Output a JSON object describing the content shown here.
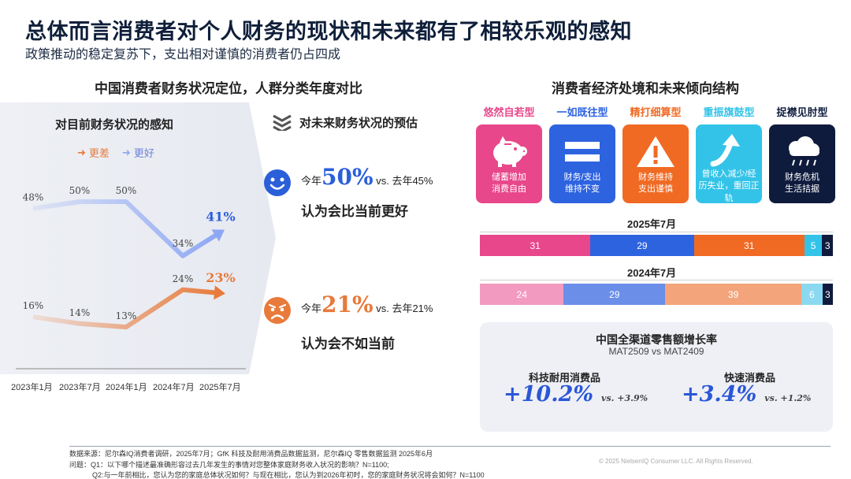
{
  "header": {
    "title": "总体而言消费者对个人财务的现状和未来都有了相较乐观的感知",
    "subtitle": "政策推动的稳定复苏下，支出相对谨慎的消费者仍占四成"
  },
  "left_section": {
    "heading": "中国消费者财务状况定位，人群分类年度对比",
    "panel_title": "对目前财务状况的感知",
    "legend": {
      "worse_label": "更差",
      "better_label": "更好"
    },
    "x_labels": [
      "2023年1月",
      "2023年7月",
      "2024年1月",
      "2024年7月",
      "2025年7月"
    ]
  },
  "chart_data": {
    "type": "line",
    "title": "对目前财务状况的感知",
    "x": [
      "2023年1月",
      "2023年7月",
      "2024年1月",
      "2024年7月",
      "2025年7月"
    ],
    "series": [
      {
        "name": "更好",
        "values": [
          48,
          50,
          50,
          34,
          41
        ],
        "labels": [
          "48%",
          "50%",
          "50%",
          "34%",
          "41%"
        ],
        "color": "#8ea7f5"
      },
      {
        "name": "更差",
        "values": [
          16,
          14,
          13,
          24,
          23
        ],
        "labels": [
          "16%",
          "14%",
          "13%",
          "24%",
          "23%"
        ],
        "color": "#e87a3b"
      }
    ],
    "legend_position": "top"
  },
  "forecast": {
    "heading": "对未来财务状况的预估",
    "better": {
      "prefix": "今年",
      "pct": "50%",
      "vs": "vs. 去年45%",
      "caption": "认为会比当前更好",
      "color": "#2b5fd9"
    },
    "worse": {
      "prefix": "今年",
      "pct": "21%",
      "vs": "vs. 去年21%",
      "caption": "认为会不如当前",
      "color": "#e87a3b"
    }
  },
  "right_section": {
    "heading": "消费者经济处境和未来倾向结构",
    "types": [
      {
        "name": "悠然自若型",
        "desc1": "储蓄增加",
        "desc2": "消费自由",
        "color": "#e8478b",
        "icon": "piggy-bank-icon"
      },
      {
        "name": "一如既往型",
        "desc1": "财务/支出",
        "desc2": "维持不变",
        "color": "#2e63e0",
        "icon": "equals-icon"
      },
      {
        "name": "精打细算型",
        "desc1": "财务维持",
        "desc2": "支出谨慎",
        "color": "#f06a23",
        "icon": "warning-icon"
      },
      {
        "name": "重振旗鼓型",
        "desc1": "曾收入减少/经",
        "desc2": "历失业，重回正轨",
        "color": "#33c3e8",
        "icon": "rebound-arrow-icon"
      },
      {
        "name": "捉襟见肘型",
        "desc1": "财务危机",
        "desc2": "生活拮据",
        "color": "#0f1b3d",
        "icon": "storm-cloud-icon"
      }
    ],
    "bars": [
      {
        "label": "2025年7月",
        "values": [
          31,
          29,
          31,
          5,
          3
        ],
        "colors": [
          "#e8478b",
          "#2e63e0",
          "#f06a23",
          "#33c3e8",
          "#0f1b3d"
        ]
      },
      {
        "label": "2024年7月",
        "values": [
          24,
          29,
          39,
          6,
          3
        ],
        "colors": [
          "#f39ac0",
          "#6b8ee8",
          "#f4a47a",
          "#8ad9f0",
          "#0f1b3d"
        ]
      }
    ]
  },
  "retail": {
    "title": "中国全渠道零售额增长率",
    "subtitle": "MAT2509 vs MAT2409",
    "metrics": [
      {
        "label": "科技耐用消费品",
        "value": "+10.2%",
        "vs": "vs. +3.9%"
      },
      {
        "label": "快速消费品",
        "value": "+3.4%",
        "vs": "vs. +1.2%"
      }
    ]
  },
  "footer": {
    "line1": "数据来源：尼尔森IQ消费者调研，2025年7月；GfK 科技及耐用消费品数据监测，尼尔森IQ 零售数据监测  2025年6月",
    "line2": "问题：Q1：以下哪个描述最准确形容过去几年发生的事情对您整体家庭财务收入状况的影响？N=1100;",
    "line3": "Q2:与一年前相比，您认为您的家庭总体状况如何？与现在相比，您认为到2026年初时，您的家庭财务状况将会如何？N=1100",
    "copyright": "© 2025 NielsenIQ Consumer LLC. All Rights Reserved."
  }
}
